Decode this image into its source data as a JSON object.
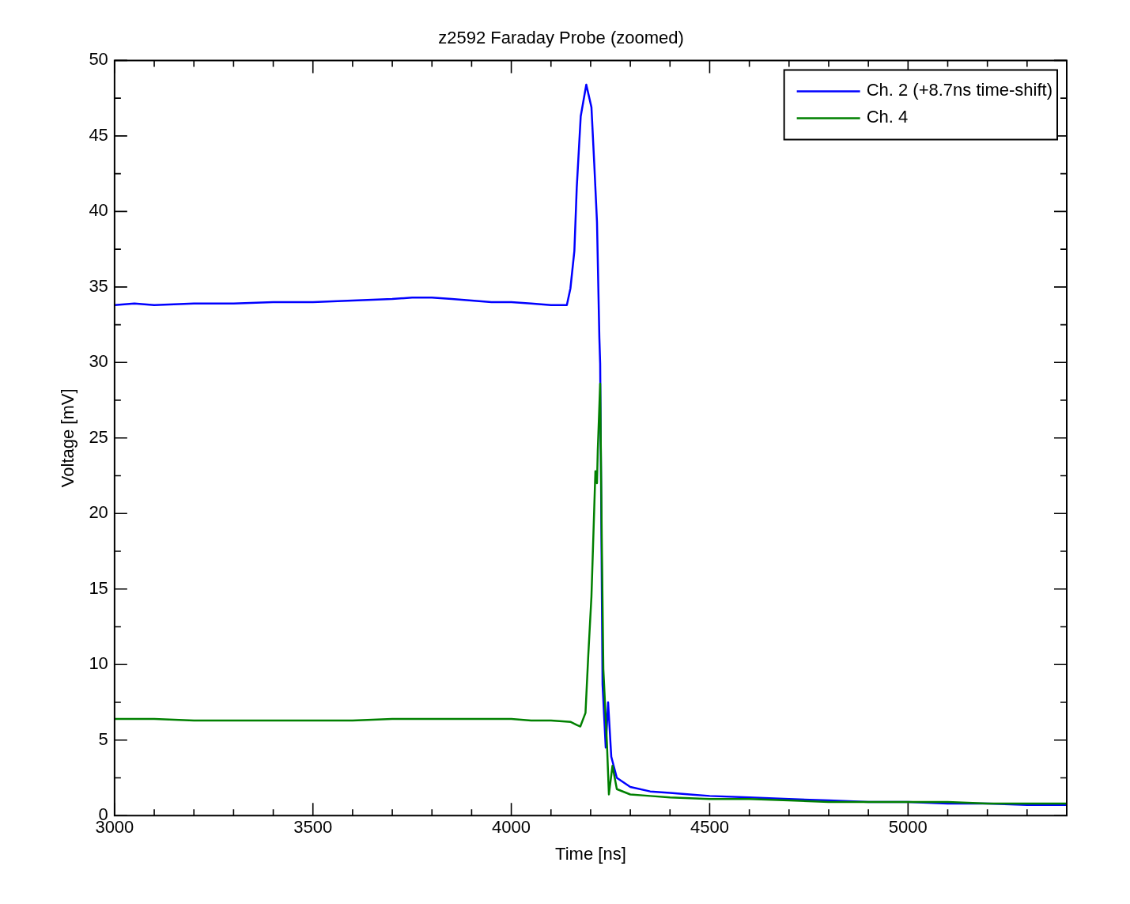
{
  "chart_data": {
    "type": "line",
    "title": "z2592 Faraday Probe (zoomed)",
    "xlabel": "Time [ns]",
    "ylabel": "Voltage [mV]",
    "xlim": [
      3000,
      5400
    ],
    "ylim": [
      0,
      50
    ],
    "xticks": [
      3000,
      {
        "value": 3100,
        "label": null
      },
      {
        "value": 3200,
        "label": null
      },
      {
        "value": 3300,
        "label": null
      },
      {
        "value": 3400,
        "label": null
      },
      3500,
      {
        "value": 3600,
        "label": null
      },
      {
        "value": 3700,
        "label": null
      },
      {
        "value": 3800,
        "label": null
      },
      {
        "value": 3900,
        "label": null
      },
      4000,
      {
        "value": 4100,
        "label": null
      },
      {
        "value": 4200,
        "label": null
      },
      {
        "value": 4300,
        "label": null
      },
      {
        "value": 4400,
        "label": null
      },
      4500,
      {
        "value": 4600,
        "label": null
      },
      {
        "value": 4700,
        "label": null
      },
      {
        "value": 4800,
        "label": null
      },
      {
        "value": 4900,
        "label": null
      },
      5000,
      {
        "value": 5100,
        "label": null
      },
      {
        "value": 5200,
        "label": null
      },
      {
        "value": 5300,
        "label": null
      }
    ],
    "yticks": [
      0,
      {
        "value": 2.5,
        "label": null
      },
      5,
      {
        "value": 7.5,
        "label": null
      },
      10,
      {
        "value": 12.5,
        "label": null
      },
      15,
      {
        "value": 17.5,
        "label": null
      },
      20,
      {
        "value": 22.5,
        "label": null
      },
      25,
      {
        "value": 27.5,
        "label": null
      },
      30,
      {
        "value": 32.5,
        "label": null
      },
      35,
      {
        "value": 37.5,
        "label": null
      },
      40,
      {
        "value": 42.5,
        "label": null
      },
      45,
      {
        "value": 47.5,
        "label": null
      },
      50
    ],
    "grid": false,
    "legend": "top right",
    "series": [
      {
        "name": "Ch. 2 (+8.7ns time-shift)",
        "color": "#0000ff",
        "x": [
          3000,
          3050,
          3100,
          3200,
          3300,
          3400,
          3500,
          3600,
          3700,
          3750,
          3800,
          3850,
          3900,
          3950,
          4000,
          4050,
          4100,
          4140,
          4149,
          4159,
          4165,
          4175,
          4189,
          4202,
          4209,
          4216,
          4222,
          4224,
          4230,
          4238,
          4244,
          4252,
          4266,
          4300,
          4350,
          4400,
          4450,
          4500,
          4600,
          4700,
          4800,
          4900,
          5000,
          5100,
          5200,
          5300,
          5400
        ],
        "values": [
          33.8,
          33.9,
          33.8,
          33.9,
          33.9,
          34.0,
          34.0,
          34.1,
          34.2,
          34.3,
          34.3,
          34.2,
          34.1,
          34.0,
          34.0,
          33.9,
          33.8,
          33.8,
          34.9,
          37.4,
          41.6,
          46.3,
          48.4,
          46.9,
          43.2,
          39.3,
          31.6,
          29.9,
          8.7,
          4.5,
          7.5,
          3.9,
          2.5,
          1.9,
          1.6,
          1.5,
          1.4,
          1.3,
          1.2,
          1.1,
          1.0,
          0.9,
          0.9,
          0.8,
          0.8,
          0.7,
          0.7
        ]
      },
      {
        "name": "Ch. 4",
        "color": "#008000",
        "x": [
          3000,
          3100,
          3200,
          3300,
          3400,
          3500,
          3600,
          3700,
          3800,
          3900,
          4000,
          4050,
          4100,
          4150,
          4165,
          4174,
          4187,
          4194,
          4202,
          4209,
          4212,
          4216,
          4218,
          4224,
          4228,
          4232,
          4241,
          4246,
          4255,
          4266,
          4300,
          4350,
          4400,
          4500,
          4600,
          4700,
          4800,
          4900,
          5000,
          5100,
          5200,
          5300,
          5400
        ],
        "values": [
          6.4,
          6.4,
          6.3,
          6.3,
          6.3,
          6.3,
          6.3,
          6.4,
          6.4,
          6.4,
          6.4,
          6.3,
          6.3,
          6.2,
          6.0,
          5.9,
          6.8,
          10.6,
          14.5,
          20.3,
          22.8,
          22.0,
          24.2,
          28.6,
          18.4,
          9.7,
          4.8,
          1.4,
          3.3,
          1.75,
          1.4,
          1.3,
          1.2,
          1.1,
          1.1,
          1.0,
          0.9,
          0.9,
          0.9,
          0.9,
          0.8,
          0.8,
          0.8
        ]
      }
    ]
  }
}
